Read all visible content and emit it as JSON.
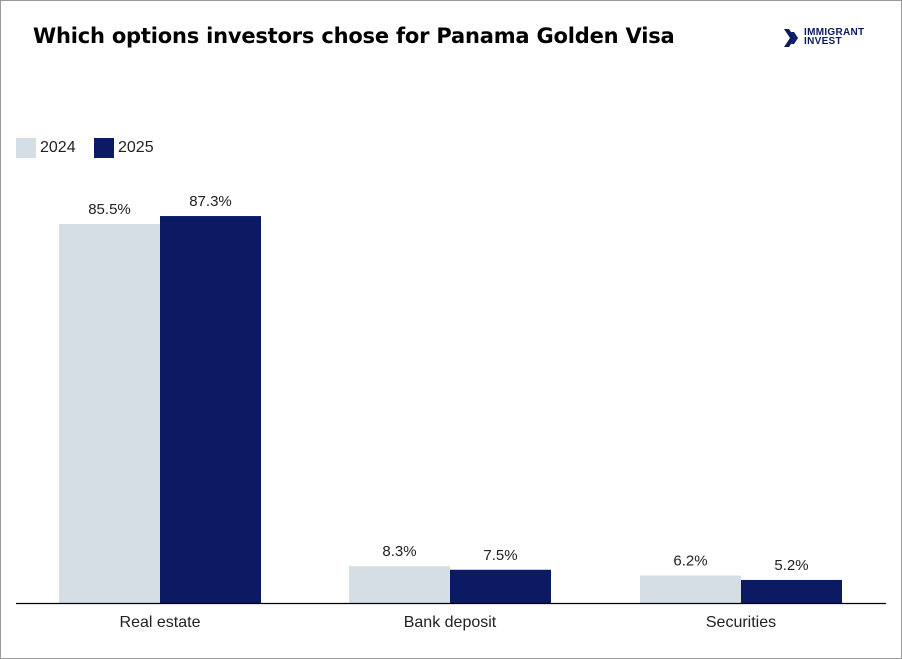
{
  "title": "Which options investors chose for Panama Golden Visa",
  "logo": {
    "line1": "IMMIGRANT",
    "line2": "INVEST",
    "color": "#0b1a63"
  },
  "colors": {
    "series_2024": "#d5dee5",
    "series_2025": "#0b1a63",
    "axis": "#000000"
  },
  "legend": [
    {
      "label": "2024",
      "color": "#d5dee5"
    },
    {
      "label": "2025",
      "color": "#0b1a63"
    }
  ],
  "chart_data": {
    "type": "bar",
    "title": "Which options investors chose for Panama Golden Visa",
    "categories": [
      "Real estate",
      "Bank deposit",
      "Securities"
    ],
    "series": [
      {
        "name": "2024",
        "values": [
          85.5,
          8.3,
          6.2
        ],
        "labels": [
          "85.5%",
          "8.3%",
          "6.2%"
        ],
        "color": "#d5dee5"
      },
      {
        "name": "2025",
        "values": [
          87.3,
          7.5,
          5.2
        ],
        "labels": [
          "87.3%",
          "7.5%",
          "5.2%"
        ],
        "color": "#0b1a63"
      }
    ],
    "xlabel": "",
    "ylabel": "",
    "ylim": [
      0,
      100
    ],
    "unit": "%",
    "grid": false,
    "legend_position": "top-left"
  }
}
